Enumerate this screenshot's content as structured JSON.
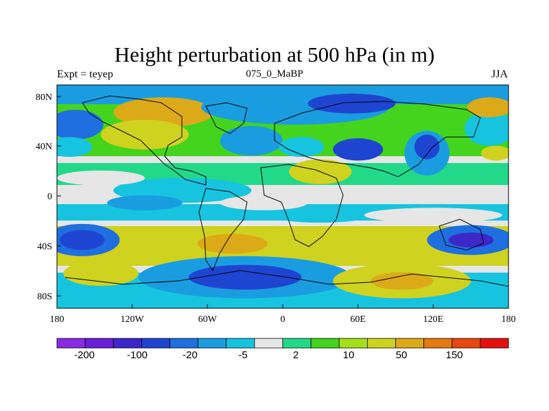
{
  "title": "Height perturbation at 500 hPa (in m)",
  "left_subtitle": "Expt = teyep",
  "center_subtitle": "075_0_MaBP",
  "right_subtitle": "JJA",
  "x_ticks": [
    "180",
    "120W",
    "60W",
    "0",
    "60E",
    "120E",
    "180"
  ],
  "y_ticks": [
    "80N",
    "40N",
    "0",
    "40S",
    "80S"
  ],
  "colorbar": {
    "colors": [
      "#8a2be2",
      "#6a1fd8",
      "#3c27c8",
      "#1e45d2",
      "#1f6fe0",
      "#1a9de0",
      "#16c4e0",
      "#e6e6e6",
      "#22d98a",
      "#44d41e",
      "#a4e01a",
      "#cfd21e",
      "#dcaa18",
      "#e47a10",
      "#e84710",
      "#e41010"
    ],
    "labels": [
      "-200",
      "-100",
      "-20",
      "-5",
      "2",
      "10",
      "50",
      "150"
    ]
  },
  "map_fields": [
    {
      "color": "#1f6fe0",
      "kind": "ellipse",
      "cx": -165,
      "cy": 58,
      "rx": 22,
      "ry": 12
    },
    {
      "color": "#16c4e0",
      "kind": "ellipse",
      "cx": -170,
      "cy": 40,
      "rx": 18,
      "ry": 8
    },
    {
      "color": "#dcaa18",
      "kind": "ellipse",
      "cx": -95,
      "cy": 68,
      "rx": 40,
      "ry": 12
    },
    {
      "color": "#cfd21e",
      "kind": "ellipse",
      "cx": -110,
      "cy": 50,
      "rx": 35,
      "ry": 12
    },
    {
      "color": "#1a9de0",
      "kind": "ellipse",
      "cx": 10,
      "cy": 72,
      "rx": 75,
      "ry": 14
    },
    {
      "color": "#1e45d2",
      "kind": "ellipse",
      "cx": 55,
      "cy": 75,
      "rx": 35,
      "ry": 8
    },
    {
      "color": "#1a9de0",
      "kind": "ellipse",
      "cx": -25,
      "cy": 45,
      "rx": 25,
      "ry": 12
    },
    {
      "color": "#1e45d2",
      "kind": "ellipse",
      "cx": 60,
      "cy": 38,
      "rx": 20,
      "ry": 9
    },
    {
      "color": "#16c4e0",
      "kind": "ellipse",
      "cx": 15,
      "cy": 40,
      "rx": 18,
      "ry": 8
    },
    {
      "color": "#cfd21e",
      "kind": "ellipse",
      "cx": 30,
      "cy": 20,
      "rx": 25,
      "ry": 10
    },
    {
      "color": "#1a9de0",
      "kind": "ellipse",
      "cx": 115,
      "cy": 35,
      "rx": 18,
      "ry": 18
    },
    {
      "color": "#1e45d2",
      "kind": "ellipse",
      "cx": 115,
      "cy": 40,
      "rx": 10,
      "ry": 10
    },
    {
      "color": "#16c4e0",
      "kind": "ellipse",
      "cx": 165,
      "cy": 55,
      "rx": 20,
      "ry": 14
    },
    {
      "color": "#dcaa18",
      "kind": "ellipse",
      "cx": 165,
      "cy": 72,
      "rx": 18,
      "ry": 8
    },
    {
      "color": "#cfd21e",
      "kind": "ellipse",
      "cx": 170,
      "cy": 35,
      "rx": 12,
      "ry": 6
    },
    {
      "color": "#16c4e0",
      "kind": "ellipse",
      "cx": -80,
      "cy": 5,
      "rx": 55,
      "ry": 10
    },
    {
      "color": "#1a9de0",
      "kind": "ellipse",
      "cx": -110,
      "cy": -5,
      "rx": 30,
      "ry": 6
    },
    {
      "color": "#16c4e0",
      "kind": "ellipse",
      "cx": 30,
      "cy": -15,
      "rx": 40,
      "ry": 6
    },
    {
      "color": "#cfd21e",
      "kind": "ellipse",
      "cx": -30,
      "cy": -38,
      "rx": 50,
      "ry": 14
    },
    {
      "color": "#dcaa18",
      "kind": "ellipse",
      "cx": -40,
      "cy": -38,
      "rx": 28,
      "ry": 8
    },
    {
      "color": "#cfd21e",
      "kind": "ellipse",
      "cx": 60,
      "cy": -40,
      "rx": 40,
      "ry": 12
    },
    {
      "color": "#1f6fe0",
      "kind": "ellipse",
      "cx": -160,
      "cy": -35,
      "rx": 30,
      "ry": 13
    },
    {
      "color": "#1e45d2",
      "kind": "ellipse",
      "cx": -160,
      "cy": -35,
      "rx": 18,
      "ry": 8
    },
    {
      "color": "#1f6fe0",
      "kind": "ellipse",
      "cx": 150,
      "cy": -35,
      "rx": 35,
      "ry": 12
    },
    {
      "color": "#3c27c8",
      "kind": "ellipse",
      "cx": 150,
      "cy": -35,
      "rx": 18,
      "ry": 6
    },
    {
      "color": "#cfd21e",
      "kind": "ellipse",
      "cx": -145,
      "cy": -62,
      "rx": 30,
      "ry": 10
    },
    {
      "color": "#1a9de0",
      "kind": "ellipse",
      "cx": -30,
      "cy": -65,
      "rx": 85,
      "ry": 17
    },
    {
      "color": "#1e45d2",
      "kind": "ellipse",
      "cx": -30,
      "cy": -65,
      "rx": 45,
      "ry": 10
    },
    {
      "color": "#cfd21e",
      "kind": "ellipse",
      "cx": 95,
      "cy": -68,
      "rx": 55,
      "ry": 14
    },
    {
      "color": "#dcaa18",
      "kind": "ellipse",
      "cx": 95,
      "cy": -68,
      "rx": 25,
      "ry": 7
    },
    {
      "color": "#e6e6e6",
      "kind": "ellipse",
      "cx": -145,
      "cy": 15,
      "rx": 35,
      "ry": 6
    },
    {
      "color": "#e6e6e6",
      "kind": "ellipse",
      "cx": 120,
      "cy": -15,
      "rx": 55,
      "ry": 6
    },
    {
      "color": "#e6e6e6",
      "kind": "ellipse",
      "cx": -15,
      "cy": -5,
      "rx": 35,
      "ry": 6
    }
  ]
}
